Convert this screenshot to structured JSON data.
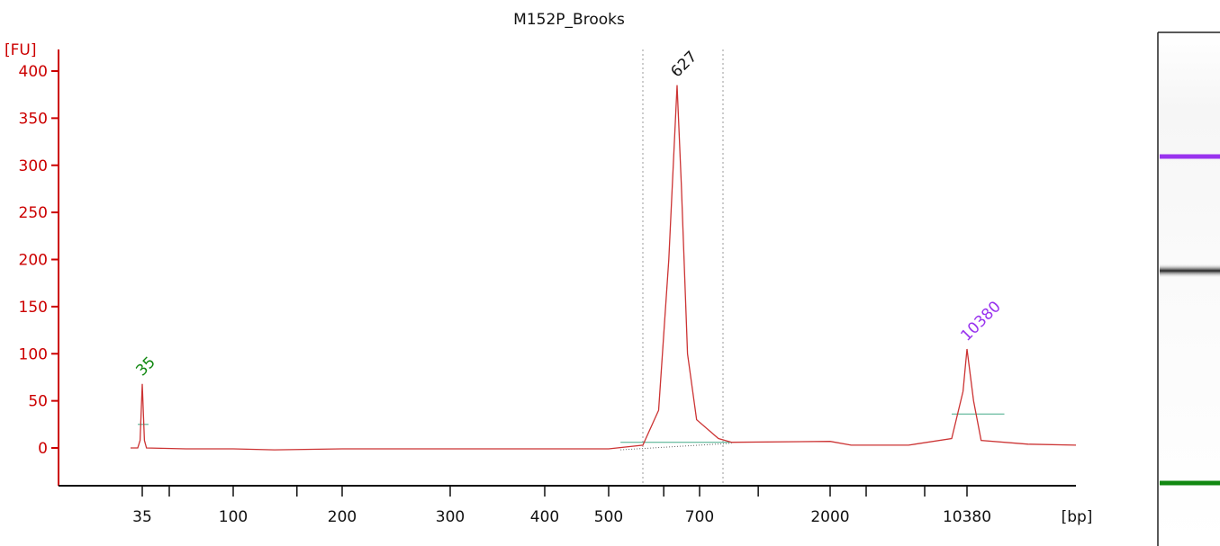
{
  "chart_data": {
    "type": "line",
    "title": "M152P_Brooks",
    "ylabel": "[FU]",
    "xlabel": "[bp]",
    "ylim": [
      -40,
      410
    ],
    "yticks": [
      0,
      50,
      100,
      150,
      200,
      250,
      300,
      350,
      400
    ],
    "xtick_labels": [
      "35",
      "100",
      "200",
      "300",
      "400",
      "500",
      "700",
      "2000",
      "10380"
    ],
    "peaks": [
      {
        "label": "35",
        "value": 68,
        "color": "#118811"
      },
      {
        "label": "627",
        "value": 385,
        "color": "#111111"
      },
      {
        "label": "10380",
        "value": 105,
        "color": "#9933ee"
      }
    ],
    "series": [
      {
        "color": "#cc3333",
        "points": [
          [
            30,
            0
          ],
          [
            33,
            0
          ],
          [
            34,
            8
          ],
          [
            35,
            68
          ],
          [
            36,
            8
          ],
          [
            37,
            0
          ],
          [
            60,
            -1
          ],
          [
            100,
            -1
          ],
          [
            130,
            -2
          ],
          [
            200,
            -1
          ],
          [
            240,
            -1
          ],
          [
            300,
            -1
          ],
          [
            400,
            -1
          ],
          [
            500,
            -1
          ],
          [
            560,
            3
          ],
          [
            590,
            40
          ],
          [
            610,
            200
          ],
          [
            627,
            385
          ],
          [
            640,
            280
          ],
          [
            660,
            100
          ],
          [
            690,
            30
          ],
          [
            740,
            10
          ],
          [
            800,
            6
          ],
          [
            2000,
            7
          ],
          [
            3000,
            3
          ],
          [
            6000,
            3
          ],
          [
            9000,
            10
          ],
          [
            10000,
            60
          ],
          [
            10380,
            105
          ],
          [
            10800,
            50
          ],
          [
            11300,
            8
          ],
          [
            15000,
            4
          ],
          [
            20000,
            3
          ]
        ]
      }
    ],
    "legend": "none",
    "grid": false
  },
  "gel_lane": {
    "bands": [
      {
        "color": "#9933ee",
        "label": "upper marker"
      },
      {
        "color": "#222222",
        "label": "sample band"
      },
      {
        "color": "#118811",
        "label": "lower marker"
      }
    ]
  }
}
